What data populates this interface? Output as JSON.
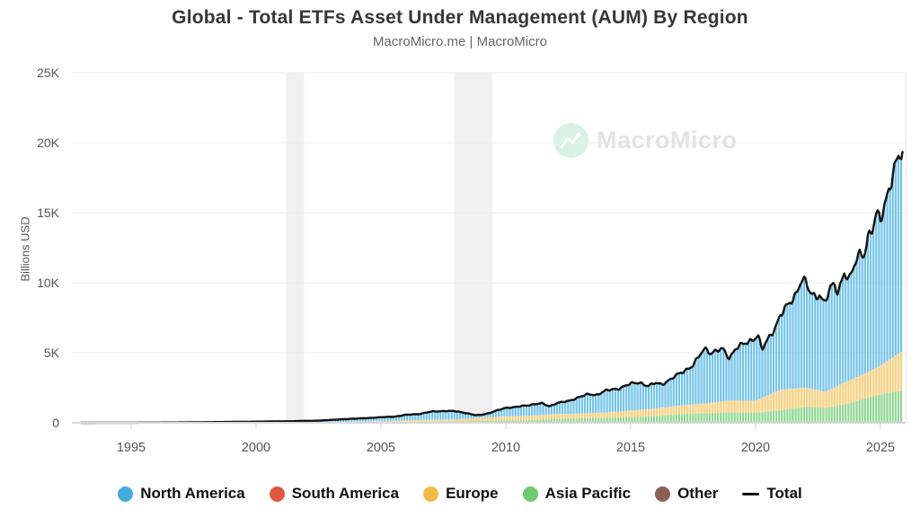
{
  "header": {
    "title": "Global - Total ETFs Asset Under Management (AUM) By Region",
    "subtitle": "MacroMicro.me | MacroMicro"
  },
  "watermark": {
    "text": "MacroMicro",
    "circle_color": "#d9f2e5",
    "logo_stroke": "#ffffff",
    "text_color": "#e3e3e3"
  },
  "y_axis": {
    "label": "Billions USD",
    "ticks": [
      {
        "label": "25K",
        "value": 25000
      },
      {
        "label": "20K",
        "value": 20000
      },
      {
        "label": "15K",
        "value": 15000
      },
      {
        "label": "10K",
        "value": 10000
      },
      {
        "label": "5K",
        "value": 5000
      },
      {
        "label": "0",
        "value": 0
      }
    ]
  },
  "x_axis": {
    "ticks": [
      {
        "label": "1995",
        "value": 1995
      },
      {
        "label": "2000",
        "value": 2000
      },
      {
        "label": "2005",
        "value": 2005
      },
      {
        "label": "2010",
        "value": 2010
      },
      {
        "label": "2015",
        "value": 2015
      },
      {
        "label": "2020",
        "value": 2020
      },
      {
        "label": "2025",
        "value": 2025
      }
    ]
  },
  "legend": {
    "items": [
      {
        "label": "North America",
        "color": "#44abdb",
        "type": "circle"
      },
      {
        "label": "South America",
        "color": "#e05743",
        "type": "circle"
      },
      {
        "label": "Europe",
        "color": "#f4ba44",
        "type": "circle"
      },
      {
        "label": "Asia Pacific",
        "color": "#6ccb6e",
        "type": "circle"
      },
      {
        "label": "Other",
        "color": "#8a6157",
        "type": "circle"
      },
      {
        "label": "Total",
        "color": "#111111",
        "type": "line"
      }
    ]
  },
  "colors": {
    "bar_north_america": "#74c3ea",
    "bar_south_america": "#f08a78",
    "bar_europe": "#f7ce7b",
    "bar_asia_pacific": "#91d694",
    "bar_other": "#97756a",
    "total_line": "#121212",
    "gridline": "#ececec",
    "baseline": "#d8d8d8",
    "tick_mark": "#cccccc",
    "right_border": "#e6e6e6",
    "recession_band": "#f1f1f1",
    "axis_text": "#555555"
  },
  "chart_data": {
    "type": "stacked_bar_line",
    "title": "Global - Total ETFs Asset Under Management (AUM) By Region",
    "unit": "billions USD",
    "xlim": [
      1993.0,
      2026.2
    ],
    "ylim": [
      0,
      25000
    ],
    "grid": true,
    "legend_position": "bottom",
    "bars_per_year": 9,
    "stack_order_bottom_to_top": [
      "other",
      "asia_pacific",
      "europe",
      "south_america",
      "north_america"
    ],
    "recession_bands": [
      [
        2001.19,
        2001.92
      ],
      [
        2007.92,
        2009.46
      ]
    ],
    "total_line_points": [
      [
        1993.0,
        2
      ],
      [
        1993.5,
        3
      ],
      [
        1994.0,
        5
      ],
      [
        1994.5,
        6
      ],
      [
        1995.0,
        8
      ],
      [
        1995.5,
        11
      ],
      [
        1996.0,
        14
      ],
      [
        1996.5,
        18
      ],
      [
        1997.0,
        24
      ],
      [
        1997.5,
        33
      ],
      [
        1998.0,
        44
      ],
      [
        1998.5,
        50
      ],
      [
        1999.0,
        58
      ],
      [
        1999.5,
        68
      ],
      [
        2000.0,
        80
      ],
      [
        2000.5,
        92
      ],
      [
        2001.0,
        104
      ],
      [
        2001.5,
        112
      ],
      [
        2002.0,
        138
      ],
      [
        2002.5,
        148
      ],
      [
        2003.0,
        205
      ],
      [
        2003.5,
        250
      ],
      [
        2004.0,
        300
      ],
      [
        2004.5,
        330
      ],
      [
        2005.0,
        400
      ],
      [
        2005.5,
        428
      ],
      [
        2006.0,
        565
      ],
      [
        2006.5,
        620
      ],
      [
        2007.0,
        790
      ],
      [
        2007.6,
        850
      ],
      [
        2008.0,
        815
      ],
      [
        2008.4,
        700
      ],
      [
        2008.8,
        530
      ],
      [
        2009.0,
        565
      ],
      [
        2009.3,
        680
      ],
      [
        2009.6,
        840
      ],
      [
        2010.0,
        1070
      ],
      [
        2010.4,
        1120
      ],
      [
        2010.8,
        1230
      ],
      [
        2011.2,
        1340
      ],
      [
        2011.45,
        1380
      ],
      [
        2011.75,
        1170
      ],
      [
        2012.0,
        1390
      ],
      [
        2012.5,
        1540
      ],
      [
        2013.0,
        1880
      ],
      [
        2013.35,
        2040
      ],
      [
        2013.6,
        1980
      ],
      [
        2014.0,
        2290
      ],
      [
        2014.5,
        2440
      ],
      [
        2015.0,
        2780
      ],
      [
        2015.35,
        2890
      ],
      [
        2015.7,
        2610
      ],
      [
        2016.0,
        2840
      ],
      [
        2016.25,
        2760
      ],
      [
        2016.6,
        3090
      ],
      [
        2017.0,
        3580
      ],
      [
        2017.5,
        4080
      ],
      [
        2017.9,
        5200
      ],
      [
        2018.05,
        5330
      ],
      [
        2018.2,
        4940
      ],
      [
        2018.45,
        5120
      ],
      [
        2018.7,
        5260
      ],
      [
        2018.95,
        4640
      ],
      [
        2019.2,
        5290
      ],
      [
        2019.5,
        5590
      ],
      [
        2019.85,
        5940
      ],
      [
        2020.1,
        6240
      ],
      [
        2020.25,
        5180
      ],
      [
        2020.5,
        5980
      ],
      [
        2020.8,
        6890
      ],
      [
        2021.0,
        7680
      ],
      [
        2021.3,
        8380
      ],
      [
        2021.6,
        9180
      ],
      [
        2021.85,
        10280
      ],
      [
        2022.0,
        9980
      ],
      [
        2022.15,
        9380
      ],
      [
        2022.4,
        8980
      ],
      [
        2022.55,
        9280
      ],
      [
        2022.75,
        8480
      ],
      [
        2023.0,
        9580
      ],
      [
        2023.15,
        9880
      ],
      [
        2023.3,
        9380
      ],
      [
        2023.55,
        10780
      ],
      [
        2023.75,
        10080
      ],
      [
        2024.0,
        11480
      ],
      [
        2024.2,
        12280
      ],
      [
        2024.35,
        12080
      ],
      [
        2024.5,
        13180
      ],
      [
        2024.7,
        13780
      ],
      [
        2024.85,
        14880
      ],
      [
        2025.0,
        14680
      ],
      [
        2025.15,
        15580
      ],
      [
        2025.3,
        16480
      ],
      [
        2025.45,
        17280
      ],
      [
        2025.6,
        18180
      ],
      [
        2025.75,
        19080
      ],
      [
        2025.88,
        19400
      ]
    ],
    "region_anchors": {
      "years": [
        1993,
        1996,
        1998,
        2000,
        2002,
        2004,
        2005,
        2006,
        2007,
        2008,
        2009,
        2010,
        2011,
        2012,
        2013,
        2014,
        2015,
        2016,
        2017,
        2018,
        2019,
        2020,
        2021,
        2022,
        2022.8,
        2023.5,
        2024,
        2024.5,
        2025,
        2025.9
      ],
      "other": [
        0,
        0,
        0,
        0,
        1,
        2,
        3,
        4,
        5,
        5,
        7,
        9,
        10,
        12,
        14,
        16,
        18,
        20,
        25,
        28,
        35,
        50,
        60,
        55,
        52,
        60,
        65,
        70,
        72,
        75
      ],
      "asia_pacific": [
        0,
        1,
        3,
        5,
        12,
        38,
        50,
        70,
        90,
        95,
        130,
        150,
        180,
        250,
        310,
        330,
        370,
        450,
        600,
        640,
        700,
        650,
        840,
        1090,
        1000,
        1240,
        1450,
        1730,
        1950,
        2250
      ],
      "europe": [
        0,
        1,
        3,
        6,
        16,
        45,
        60,
        90,
        120,
        140,
        220,
        300,
        310,
        350,
        330,
        380,
        480,
        540,
        600,
        700,
        850,
        860,
        1450,
        1350,
        1150,
        1500,
        1700,
        1800,
        2050,
        2800
      ],
      "south_america": [
        0,
        0,
        0,
        1,
        1,
        2,
        2,
        3,
        3,
        3,
        4,
        5,
        5,
        6,
        6,
        6,
        7,
        7,
        8,
        8,
        9,
        10,
        10,
        10,
        10,
        10,
        11,
        11,
        12,
        12
      ],
      "north_america_note": "north_america = total - (other + asia_pacific + europe + south_america)"
    }
  }
}
